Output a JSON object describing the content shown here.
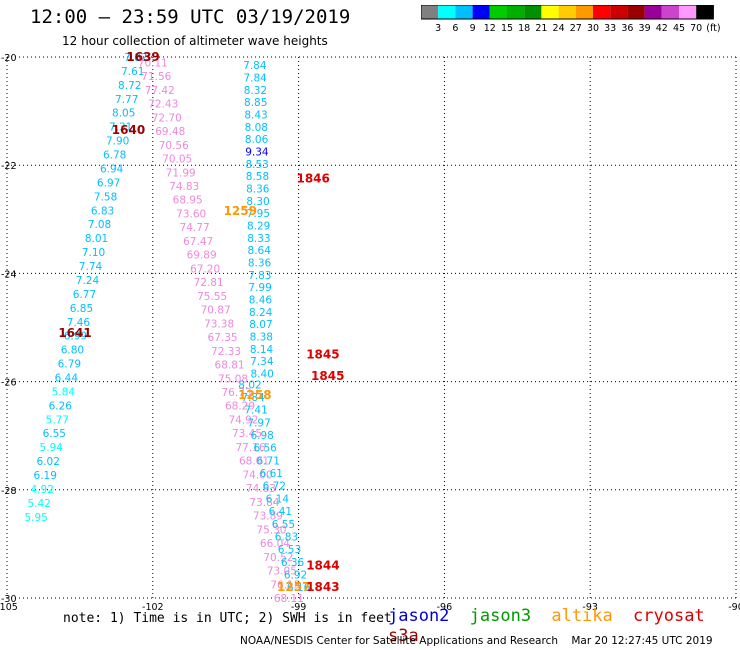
{
  "title": "12:00 – 23:59 UTC 03/19/2019",
  "subtitle": "12 hour collection of altimeter wave heights",
  "scale": {
    "colors": [
      "#808080",
      "#00ffff",
      "#00bfff",
      "#0000ff",
      "#00cc00",
      "#00b000",
      "#009000",
      "#ffff00",
      "#ffcc00",
      "#ff9900",
      "#ff0000",
      "#cc0000",
      "#990000",
      "#990099",
      "#cc44cc",
      "#ff99ff",
      "#000000"
    ],
    "labels": [
      "3",
      "6",
      "9",
      "12",
      "15",
      "18",
      "21",
      "24",
      "27",
      "30",
      "33",
      "36",
      "39",
      "42",
      "45",
      "70",
      "(ft)"
    ]
  },
  "axes": {
    "lon_ticks": [
      "-105",
      "-102",
      "-99",
      "-96",
      "-93",
      "-90"
    ],
    "lat_ticks": [
      "-20",
      "-22",
      "-24",
      "-26",
      "-28",
      "-30"
    ],
    "lon_range": [
      -105,
      -90
    ],
    "lat_range": [
      -30,
      -20
    ]
  },
  "note": "note:  1) Time is in UTC;  2) SWH is in feet",
  "legend": [
    {
      "name": "jason2",
      "color": "#0000dd"
    },
    {
      "name": "jason3",
      "color": "#009900"
    },
    {
      "name": "altika",
      "color": "#ff9900"
    },
    {
      "name": "cryosat",
      "color": "#dd0000"
    },
    {
      "name": "s3a",
      "color": "#990000"
    }
  ],
  "footer": "NOAA/NESDIS Center for Satellite Applications and Research    Mar 20 12:27:45 UTC 2019",
  "chart_data": {
    "type": "scatter",
    "time_labels": [
      {
        "text": "1639",
        "lon": -102.2,
        "lat": -20.0,
        "color": "#990000"
      },
      {
        "text": "1640",
        "lon": -102.5,
        "lat": -21.35,
        "color": "#990000"
      },
      {
        "text": "1641",
        "lon": -103.6,
        "lat": -25.1,
        "color": "#990000"
      },
      {
        "text": "1846",
        "lon": -98.7,
        "lat": -22.25,
        "color": "#dd0000"
      },
      {
        "text": "1259",
        "lon": -100.2,
        "lat": -22.85,
        "color": "#ff9900"
      },
      {
        "text": "1845",
        "lon": -98.5,
        "lat": -25.5,
        "color": "#dd0000"
      },
      {
        "text": "1845",
        "lon": -98.4,
        "lat": -25.9,
        "color": "#dd0000"
      },
      {
        "text": "1258",
        "lon": -99.9,
        "lat": -26.25,
        "color": "#ff9900"
      },
      {
        "text": "1844",
        "lon": -98.5,
        "lat": -29.4,
        "color": "#dd0000"
      },
      {
        "text": "1257",
        "lon": -99.1,
        "lat": -29.8,
        "color": "#ff9900"
      },
      {
        "text": "1843",
        "lon": -98.5,
        "lat": -29.8,
        "color": "#dd0000"
      }
    ],
    "tracks": [
      {
        "name": "cyan-track-west",
        "lon_start": -102.35,
        "lon_end": -104.4,
        "lat_start": -20.0,
        "lat_end": -28.5,
        "values": [
          "7.82",
          "7.61",
          "8.72",
          "7.77",
          "8.05",
          "7.31",
          "7.90",
          "6.78",
          "6.94",
          "6.97",
          "7.58",
          "6.83",
          "7.08",
          "8.01",
          "7.10",
          "7.74",
          "7.24",
          "6.77",
          "6.85",
          "7.46",
          "6.99",
          "6.80",
          "6.79",
          "6.44",
          "5.84",
          "6.26",
          "5.77",
          "6.55",
          "5.94",
          "6.02",
          "6.19",
          "4.92",
          "5.42",
          "5.95"
        ]
      },
      {
        "name": "pink-track",
        "lon_start": -102.0,
        "lon_end": -99.2,
        "lat_start": -20.1,
        "lat_end": -30.0,
        "values": [
          "70.11",
          "71.56",
          "77.42",
          "72.43",
          "72.70",
          "69.48",
          "70.56",
          "70.05",
          "71.99",
          "74.83",
          "68.95",
          "73.60",
          "74.77",
          "67.47",
          "69.89",
          "67.20",
          "72.81",
          "75.55",
          "70.87",
          "73.38",
          "67.35",
          "72.33",
          "68.81",
          "75.08",
          "76.73",
          "68.29",
          "74.92",
          "73.45",
          "77.16",
          "68.01",
          "74.00",
          "74.63",
          "73.84",
          "73.89",
          "75.30",
          "66.04",
          "70.52",
          "73.05",
          "76.15",
          "68.11"
        ]
      },
      {
        "name": "cyan-track-east-north",
        "lon_start": -99.9,
        "lon_end": -99.75,
        "lat_start": -20.15,
        "lat_end": -25.85,
        "values": [
          "7.84",
          "7.84",
          "8.32",
          "8.85",
          "8.43",
          "8.08",
          "8.06",
          "9.34",
          "8.53",
          "8.58",
          "8.36",
          "8.30",
          "7.95",
          "8.29",
          "8.33",
          "8.64",
          "8.36",
          "7.83",
          "7.99",
          "8.46",
          "8.24",
          "8.07",
          "8.38",
          "8.14",
          "7.34",
          "8.40"
        ]
      },
      {
        "name": "cyan-track-east-south",
        "lon_start": -100.0,
        "lon_end": -99.0,
        "lat_start": -26.05,
        "lat_end": -29.8,
        "values": [
          "8.02",
          "7.84",
          "7.41",
          "7.97",
          "6.98",
          "6.56",
          "6.71",
          "6.61",
          "6.72",
          "6.14",
          "6.41",
          "6.55",
          "6.83",
          "6.53",
          "6.36",
          "6.92",
          "6.16"
        ]
      }
    ]
  }
}
